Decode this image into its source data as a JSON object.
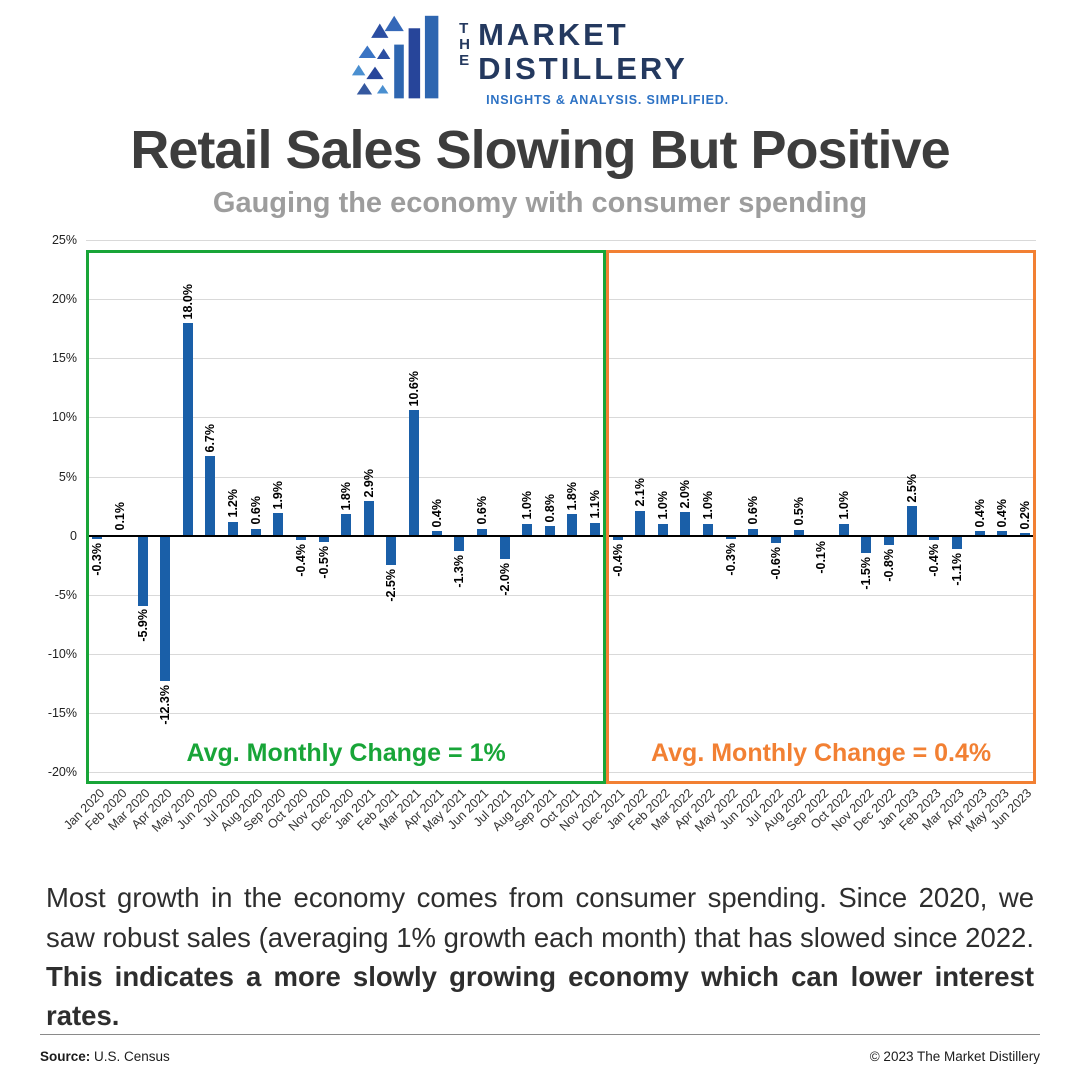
{
  "logo": {
    "the": "THE",
    "name_line1": "MARKET",
    "name_line2": "DISTILLERY",
    "tagline": "INSIGHTS & ANALYSIS. SIMPLIFIED."
  },
  "header": {
    "title": "Retail Sales Slowing But Positive",
    "subtitle": "Gauging the economy with consumer spending"
  },
  "chart_data": {
    "type": "bar",
    "title": "Monthly retail sales percent change",
    "categories": [
      "Jan 2020",
      "Feb 2020",
      "Mar 2020",
      "Apr 2020",
      "May 2020",
      "Jun 2020",
      "Jul 2020",
      "Aug 2020",
      "Sep 2020",
      "Oct 2020",
      "Nov 2020",
      "Dec 2020",
      "Jan 2021",
      "Feb 2021",
      "Mar 2021",
      "Apr 2021",
      "May 2021",
      "Jun 2021",
      "Jul 2021",
      "Aug 2021",
      "Sep 2021",
      "Oct 2021",
      "Nov 2021",
      "Dec 2021",
      "Jan 2022",
      "Feb 2022",
      "Mar 2022",
      "Apr 2022",
      "May 2022",
      "Jun 2022",
      "Jul 2022",
      "Aug 2022",
      "Sep 2022",
      "Oct 2022",
      "Nov 2022",
      "Dec 2022",
      "Jan 2023",
      "Feb 2023",
      "Mar 2023",
      "Apr 2023",
      "May 2023",
      "Jun 2023"
    ],
    "values": [
      -0.3,
      0.1,
      -5.9,
      -12.3,
      18.0,
      6.7,
      1.2,
      0.6,
      1.9,
      -0.4,
      -0.5,
      1.8,
      2.9,
      -2.5,
      10.6,
      0.4,
      -1.3,
      0.6,
      -2.0,
      1.0,
      0.8,
      1.8,
      1.1,
      -0.4,
      2.1,
      1.0,
      2.0,
      1.0,
      -0.3,
      0.6,
      -0.6,
      0.5,
      -0.1,
      1.0,
      -1.5,
      -0.8,
      2.5,
      -0.4,
      -1.1,
      0.4,
      0.4,
      0.2
    ],
    "ylim": [
      -20,
      25
    ],
    "yticks": [
      25,
      20,
      15,
      10,
      5,
      0,
      -5,
      -10,
      -15,
      -20
    ],
    "ytick_labels": [
      "25%",
      "20%",
      "15%",
      "10%",
      "5%",
      "0",
      "-5%",
      "-10%",
      "-15%",
      "-20%"
    ],
    "bar_color": "#1a5fa8",
    "grid": true,
    "legend": "none",
    "annotations": [
      {
        "label": "Avg. Monthly Change = 1%",
        "color": "#18a538",
        "start_index": 0,
        "end_index": 22
      },
      {
        "label": "Avg. Monthly Change = 0.4%",
        "color": "#f28033",
        "start_index": 23,
        "end_index": 41
      }
    ]
  },
  "body": {
    "text_regular": "Most growth in the economy comes from consumer spending. Since 2020, we saw robust sales (averaging 1% growth each month) that has slowed since 2022.",
    "text_bold": "This indicates a more slowly growing economy which can lower interest rates."
  },
  "footer": {
    "source_label": "Source:",
    "source_value": " U.S. Census",
    "copyright": "© 2023 The Market Distillery"
  }
}
